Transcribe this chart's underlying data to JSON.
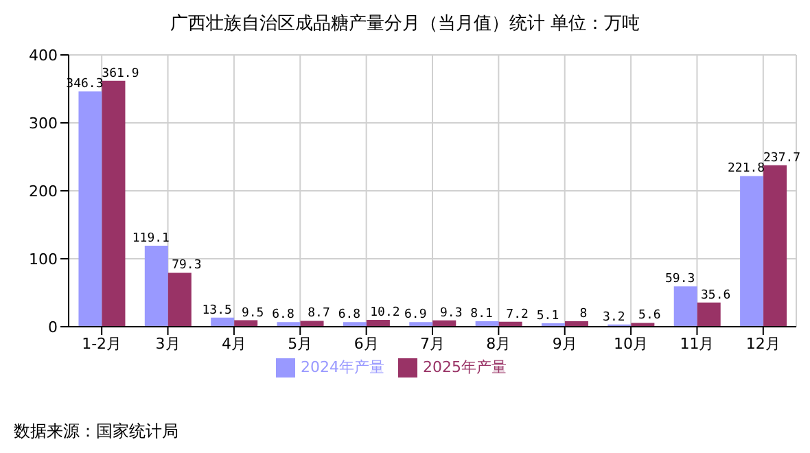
{
  "chart_data": {
    "type": "bar",
    "title": "广西壮族自治区成品糖产量分月（当月值）统计  单位：万吨",
    "categories": [
      "1-2月",
      "3月",
      "4月",
      "5月",
      "6月",
      "7月",
      "8月",
      "9月",
      "10月",
      "11月",
      "12月"
    ],
    "series": [
      {
        "name": "2024年产量",
        "color": "#9999ff",
        "values": [
          346.3,
          119.1,
          13.5,
          6.8,
          6.8,
          6.9,
          8.1,
          5.1,
          3.2,
          59.3,
          221.8
        ]
      },
      {
        "name": "2025年产量",
        "color": "#993366",
        "values": [
          361.9,
          79.3,
          9.5,
          8.7,
          10.2,
          9.3,
          7.2,
          8,
          5.6,
          35.6,
          237.7
        ]
      }
    ],
    "ylim": [
      0,
      400
    ],
    "yticks": [
      0,
      100,
      200,
      300,
      400
    ],
    "grid": true,
    "legend": "bottom",
    "data_labels": true,
    "annotations": [
      "数据来源：国家统计局"
    ]
  }
}
